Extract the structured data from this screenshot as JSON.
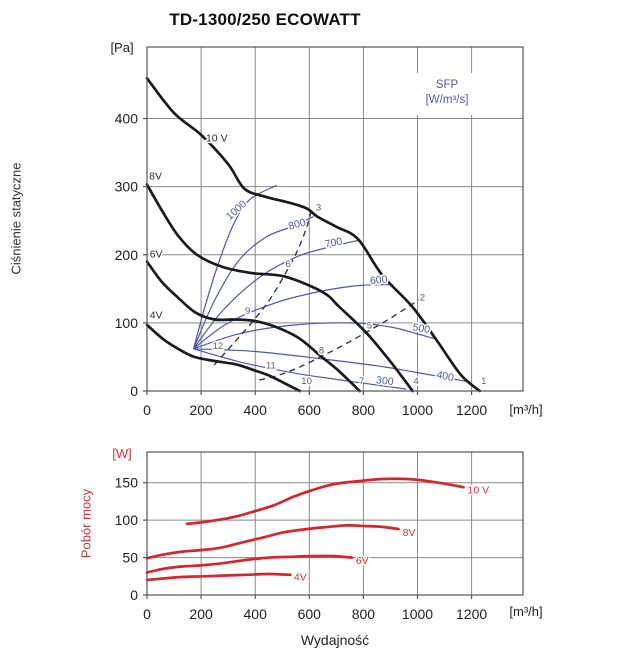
{
  "title": "TD-1300/250 ECOWATT",
  "axes": {
    "pressure_unit": "[Pa]",
    "power_unit": "[W]",
    "flow_unit": "[m³/h]",
    "pressure_axis_label": "Ciśnienie statyczne",
    "power_axis_label": "Pobór mocy",
    "flow_axis_label": "Wydajność"
  },
  "legend": {
    "line1": "SFP",
    "line2": "[W/m³/s]"
  },
  "colors": {
    "curve_black": "#1b1b1b",
    "sfp_blue": "#4d5ba6",
    "power_red": "#d2282d",
    "red_label": "#cf3438",
    "grid": "#8a8a8a",
    "frame": "#555555",
    "tick_text": "#1f1f1f",
    "point_label": "#5c5f72",
    "dashed": "#3a3a3a"
  },
  "chart_data": [
    {
      "id": "pressure-chart",
      "type": "line",
      "ylabel": "Ciśnienie statyczne",
      "yunit": "[Pa]",
      "xunit": "[m³/h]",
      "xticks": [
        0,
        200,
        400,
        600,
        800,
        1000,
        1200
      ],
      "yticks": [
        0,
        100,
        200,
        300,
        400
      ],
      "xlim": [
        0,
        1390
      ],
      "ylim": [
        0,
        505
      ],
      "grid": true,
      "legend_position": "top-right",
      "series": [
        {
          "name": "10 V",
          "label_at": [
            218,
            372
          ],
          "points": [
            [
              0,
              459
            ],
            [
              100,
              408
            ],
            [
              200,
              376
            ],
            [
              300,
              333
            ],
            [
              360,
              297
            ],
            [
              440,
              285
            ],
            [
              520,
              277
            ],
            [
              590,
              268
            ],
            [
              630,
              256
            ],
            [
              700,
              241
            ],
            [
              780,
              223
            ],
            [
              870,
              170
            ],
            [
              980,
              124
            ],
            [
              1070,
              75
            ],
            [
              1160,
              24
            ],
            [
              1230,
              0
            ]
          ]
        },
        {
          "name": "8V",
          "label_at": [
            8,
            316
          ],
          "points": [
            [
              0,
              303
            ],
            [
              55,
              265
            ],
            [
              115,
              228
            ],
            [
              185,
              200
            ],
            [
              280,
              182
            ],
            [
              390,
              173
            ],
            [
              510,
              168
            ],
            [
              650,
              145
            ],
            [
              712,
              123
            ],
            [
              812,
              85
            ],
            [
              900,
              43
            ],
            [
              982,
              0
            ]
          ]
        },
        {
          "name": "6V",
          "label_at": [
            10,
            202
          ],
          "points": [
            [
              0,
              190
            ],
            [
              55,
              160
            ],
            [
              115,
              137
            ],
            [
              180,
              115
            ],
            [
              250,
              105
            ],
            [
              320,
              105
            ],
            [
              395,
              103
            ],
            [
              470,
              95
            ],
            [
              560,
              78
            ],
            [
              640,
              52
            ],
            [
              710,
              29
            ],
            [
              786,
              0
            ]
          ]
        },
        {
          "name": "4V",
          "label_at": [
            10,
            112
          ],
          "points": [
            [
              0,
              97
            ],
            [
              60,
              76
            ],
            [
              115,
              62
            ],
            [
              175,
              50
            ],
            [
              250,
              44
            ],
            [
              330,
              39
            ],
            [
              400,
              30
            ],
            [
              455,
              22
            ],
            [
              510,
              11
            ],
            [
              565,
              0
            ]
          ]
        }
      ],
      "sfp_curves": [
        {
          "value": "1000",
          "label_at": [
            338,
            262
          ],
          "label_rot": -42,
          "points": [
            [
              172,
              62
            ],
            [
              215,
              125
            ],
            [
              262,
              185
            ],
            [
              318,
              243
            ],
            [
              380,
              281
            ],
            [
              480,
              302
            ]
          ]
        },
        {
          "value": "800",
          "label_at": [
            558,
            240
          ],
          "label_rot": -16,
          "points": [
            [
              172,
              62
            ],
            [
              250,
              133
            ],
            [
              340,
              192
            ],
            [
              440,
              226
            ],
            [
              540,
              242
            ],
            [
              615,
              256
            ]
          ]
        },
        {
          "value": "700",
          "label_at": [
            692,
            213
          ],
          "label_rot": -11,
          "points": [
            [
              172,
              62
            ],
            [
              280,
              118
            ],
            [
              420,
              168
            ],
            [
              560,
              198
            ],
            [
              692,
              213
            ],
            [
              780,
              221
            ]
          ]
        },
        {
          "value": "600",
          "label_at": [
            858,
            158
          ],
          "label_rot": -6,
          "points": [
            [
              172,
              62
            ],
            [
              300,
              100
            ],
            [
              480,
              130
            ],
            [
              650,
              147
            ],
            [
              790,
              155
            ],
            [
              910,
              156
            ]
          ]
        },
        {
          "value": "500",
          "label_at": [
            1012,
            87
          ],
          "label_rot": 10,
          "points": [
            [
              172,
              62
            ],
            [
              350,
              85
            ],
            [
              550,
              97
            ],
            [
              750,
              100
            ],
            [
              900,
              94
            ],
            [
              1060,
              77
            ]
          ]
        },
        {
          "value": "400",
          "label_at": [
            1100,
            17
          ],
          "label_rot": 11,
          "points": [
            [
              172,
              62
            ],
            [
              400,
              58
            ],
            [
              650,
              47
            ],
            [
              850,
              37
            ],
            [
              1000,
              27
            ],
            [
              1195,
              13
            ]
          ]
        },
        {
          "value": "300",
          "label_at": [
            878,
            10
          ],
          "label_rot": 7,
          "points": [
            [
              172,
              62
            ],
            [
              350,
              42
            ],
            [
              550,
              26
            ],
            [
              700,
              17
            ],
            [
              880,
              7
            ],
            [
              958,
              3
            ]
          ]
        }
      ],
      "dashed_lines": [
        {
          "points": [
            [
              248,
              38
            ],
            [
              320,
              70
            ],
            [
              395,
              104
            ],
            [
              455,
              135
            ],
            [
              505,
              168
            ],
            [
              555,
              205
            ],
            [
              590,
              240
            ],
            [
              610,
              268
            ]
          ]
        },
        {
          "points": [
            [
              415,
              16
            ],
            [
              500,
              25
            ],
            [
              590,
              40
            ],
            [
              720,
              66
            ],
            [
              818,
              88
            ],
            [
              900,
              107
            ],
            [
              1030,
              140
            ]
          ]
        }
      ],
      "point_labels": [
        {
          "n": "1",
          "at": [
            1245,
            10
          ]
        },
        {
          "n": "2",
          "at": [
            1018,
            133
          ]
        },
        {
          "n": "3",
          "at": [
            634,
            265
          ]
        },
        {
          "n": "4",
          "at": [
            995,
            10
          ]
        },
        {
          "n": "5",
          "at": [
            822,
            92
          ]
        },
        {
          "n": "6",
          "at": [
            522,
            182
          ]
        },
        {
          "n": "7",
          "at": [
            793,
            10
          ]
        },
        {
          "n": "8",
          "at": [
            645,
            55
          ]
        },
        {
          "n": "9",
          "at": [
            372,
            113
          ]
        },
        {
          "n": "10",
          "at": [
            590,
            10
          ]
        },
        {
          "n": "11",
          "at": [
            458,
            33
          ]
        },
        {
          "n": "12",
          "at": [
            262,
            62
          ]
        }
      ]
    },
    {
      "id": "power-chart",
      "type": "line",
      "ylabel": "Pobór mocy",
      "yunit": "[W]",
      "xunit": "[m³/h]",
      "xlabel": "Wydajność",
      "xticks": [
        0,
        200,
        400,
        600,
        800,
        1000,
        1200
      ],
      "yticks": [
        0,
        50,
        100,
        150
      ],
      "xlim": [
        0,
        1390
      ],
      "ylim": [
        0,
        191
      ],
      "grid": true,
      "series": [
        {
          "name": "10 V",
          "label_at": [
            1185,
            141
          ],
          "points": [
            [
              148,
              95
            ],
            [
              200,
              97
            ],
            [
              260,
              100
            ],
            [
              330,
              105
            ],
            [
              400,
              112
            ],
            [
              470,
              120
            ],
            [
              540,
              131
            ],
            [
              610,
              140
            ],
            [
              690,
              148
            ],
            [
              780,
              152
            ],
            [
              870,
              155
            ],
            [
              960,
              155
            ],
            [
              1040,
              152
            ],
            [
              1110,
              148
            ],
            [
              1170,
              144
            ]
          ]
        },
        {
          "name": "8V",
          "label_at": [
            945,
            84
          ],
          "points": [
            [
              0,
              49
            ],
            [
              60,
              54
            ],
            [
              130,
              58
            ],
            [
              200,
              60
            ],
            [
              270,
              63
            ],
            [
              350,
              70
            ],
            [
              430,
              77
            ],
            [
              510,
              84
            ],
            [
              590,
              88
            ],
            [
              670,
              91
            ],
            [
              740,
              93
            ],
            [
              810,
              92
            ],
            [
              870,
              91
            ],
            [
              930,
              88
            ]
          ]
        },
        {
          "name": "6V",
          "label_at": [
            772,
            47
          ],
          "points": [
            [
              0,
              30
            ],
            [
              60,
              35
            ],
            [
              130,
              38
            ],
            [
              210,
              40
            ],
            [
              290,
              43
            ],
            [
              370,
              47
            ],
            [
              450,
              50
            ],
            [
              530,
              51
            ],
            [
              610,
              52
            ],
            [
              690,
              52
            ],
            [
              758,
              50
            ]
          ]
        },
        {
          "name": "4V",
          "label_at": [
            543,
            25
          ],
          "points": [
            [
              0,
              20
            ],
            [
              60,
              22
            ],
            [
              130,
              24
            ],
            [
              210,
              25
            ],
            [
              290,
              26
            ],
            [
              370,
              27
            ],
            [
              450,
              28
            ],
            [
              530,
              27
            ]
          ]
        }
      ]
    }
  ]
}
